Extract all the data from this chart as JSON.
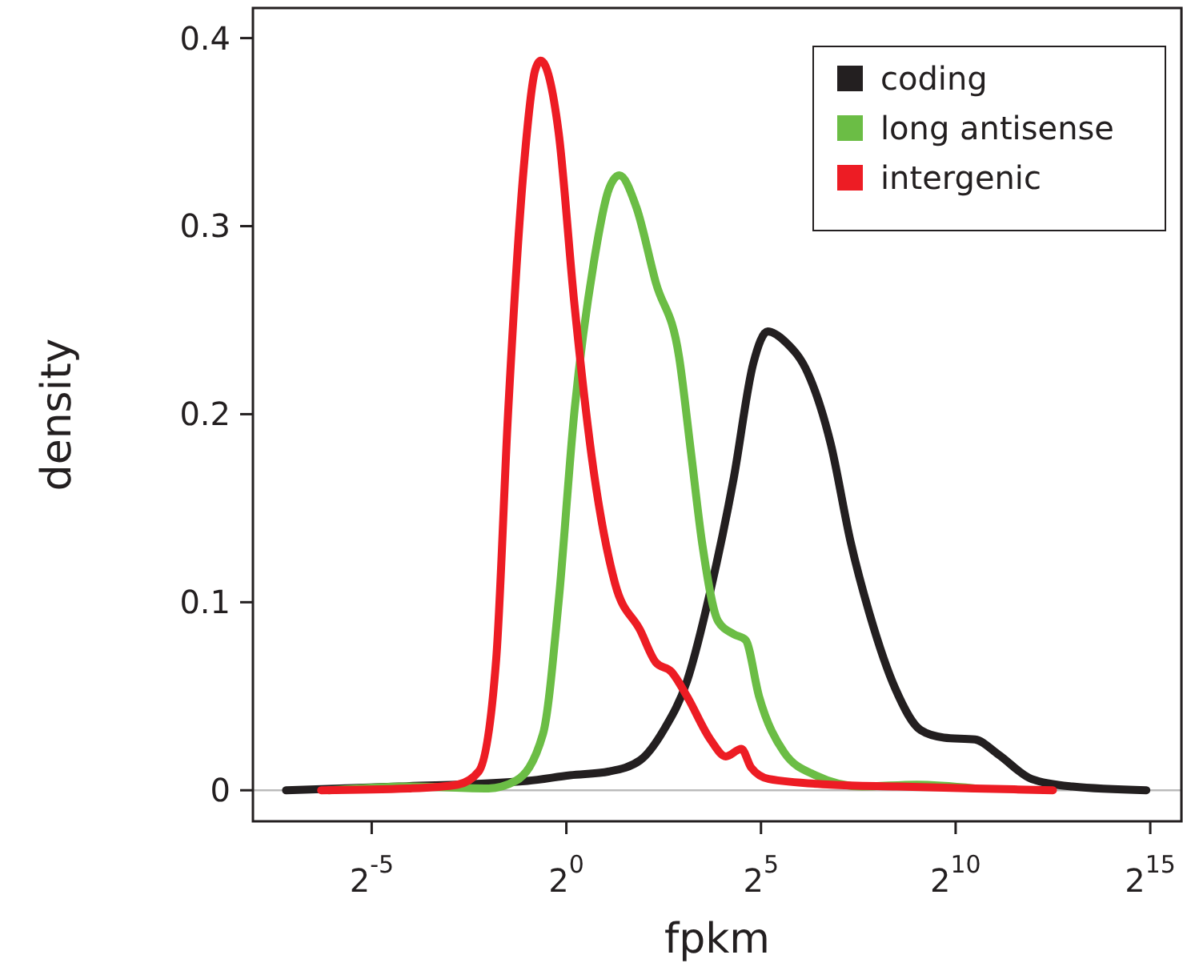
{
  "chart_data": {
    "type": "line",
    "xlabel": "fpkm",
    "ylabel": "density",
    "log": "x",
    "xlim": [
      0.00377,
      57052
    ],
    "ylim": [
      -0.0165,
      0.416
    ],
    "xticks": [
      {
        "value": 0.03125,
        "label": "2$^{-5}$"
      },
      {
        "value": 1,
        "label": "2$^{0}$"
      },
      {
        "value": 32,
        "label": "2$^{5}$"
      },
      {
        "value": 1024,
        "label": "2$^{10}$"
      },
      {
        "value": 32768,
        "label": "2$^{15}$"
      }
    ],
    "yticks": [
      {
        "value": 0,
        "label": "0"
      },
      {
        "value": 0.1,
        "label": "0.1"
      },
      {
        "value": 0.2,
        "label": "0.2"
      },
      {
        "value": 0.3,
        "label": "0.3"
      },
      {
        "value": 0.4,
        "label": "0.4"
      }
    ],
    "legend": "top right",
    "grid": false,
    "marker": "none",
    "line_style": "solid",
    "ref_lines": [
      {
        "axis": "y",
        "value": 0,
        "color": "#bbbbbb"
      }
    ],
    "series": [
      {
        "name": "coding",
        "color": "#231f20",
        "x": [
          0.0068,
          0.0508,
          0.5,
          1.07,
          2.14,
          3.73,
          5.66,
          8.57,
          13.0,
          19.7,
          27.9,
          36.0,
          50.2,
          73.5,
          111,
          158,
          223,
          350,
          549,
          832,
          1448,
          2195,
          3956,
          8192,
          30574
        ],
        "values": [
          0,
          0.002,
          0.005,
          0.008,
          0.01,
          0.016,
          0.032,
          0.058,
          0.106,
          0.166,
          0.227,
          0.244,
          0.238,
          0.222,
          0.184,
          0.132,
          0.093,
          0.054,
          0.032,
          0.028,
          0.027,
          0.019,
          0.006,
          0.002,
          0
        ]
      },
      {
        "name": "long antisense",
        "color": "#6bbd45",
        "x": [
          0.0146,
          0.0625,
          0.25,
          0.406,
          0.66,
          0.871,
          1.149,
          1.625,
          2.14,
          2.57,
          3.48,
          4.92,
          7.46,
          9.19,
          11.3,
          14.9,
          19.7,
          24.3,
          30.9,
          48.5,
          84.4,
          194,
          512,
          1448
        ],
        "values": [
          0,
          0.002,
          0.001,
          0.005,
          0.03,
          0.1,
          0.2,
          0.28,
          0.32,
          0.327,
          0.31,
          0.27,
          0.23,
          0.18,
          0.13,
          0.09,
          0.083,
          0.08,
          0.05,
          0.02,
          0.008,
          0.002,
          0.003,
          0.001
        ],
        "line_style": "solid"
      },
      {
        "name": "intergenic",
        "color": "#ed1c24",
        "x": [
          0.0127,
          0.0625,
          0.144,
          0.21,
          0.287,
          0.354,
          0.467,
          0.574,
          0.633,
          0.871,
          1.149,
          1.625,
          2.38,
          3.73,
          4.92,
          6.5,
          8.57,
          13.0,
          17.1,
          22.6,
          26.9,
          36.8,
          111,
          362,
          1448,
          5793
        ],
        "values": [
          0,
          0.001,
          0.003,
          0.01,
          0.07,
          0.2,
          0.33,
          0.383,
          0.388,
          0.35,
          0.26,
          0.17,
          0.11,
          0.085,
          0.068,
          0.063,
          0.05,
          0.027,
          0.018,
          0.022,
          0.012,
          0.006,
          0.003,
          0.002,
          0.001,
          0
        ]
      }
    ]
  }
}
